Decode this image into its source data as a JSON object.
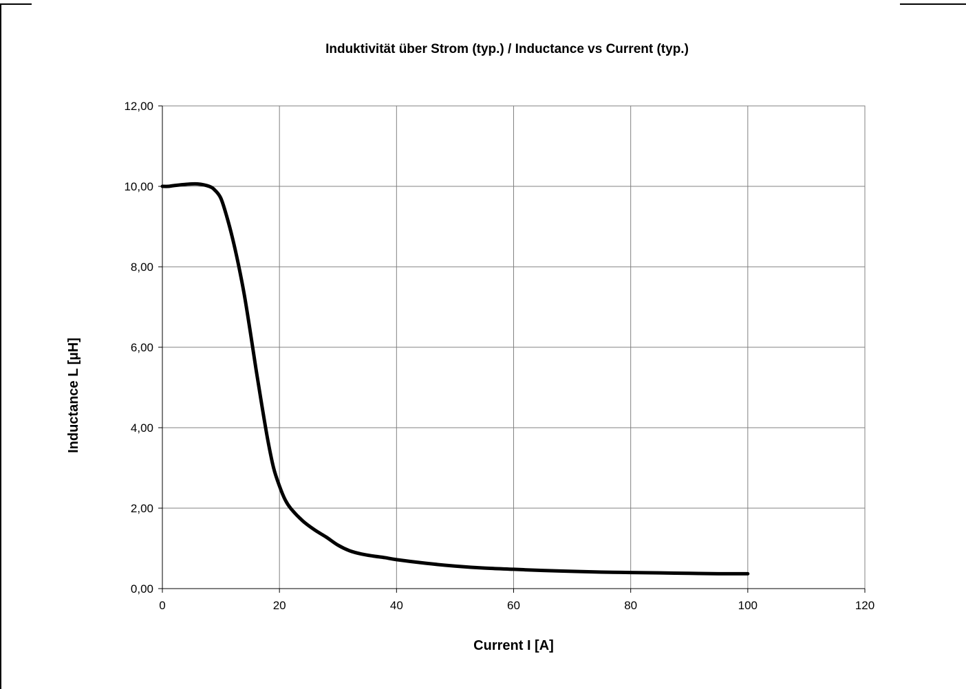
{
  "chart_data": {
    "type": "line",
    "title": "Induktivität über Strom (typ.) / Inductance vs Current (typ.)",
    "xlabel": "Current I [A]",
    "ylabel": "Inductance L [µH]",
    "xlim": [
      0,
      120
    ],
    "ylim": [
      0,
      12
    ],
    "xticks": [
      0,
      20,
      40,
      60,
      80,
      100,
      120
    ],
    "yticks": [
      0,
      2,
      4,
      6,
      8,
      10,
      12
    ],
    "xtick_labels": [
      "0",
      "20",
      "40",
      "60",
      "80",
      "100",
      "120"
    ],
    "ytick_labels": [
      "0,00",
      "2,00",
      "4,00",
      "6,00",
      "8,00",
      "10,00",
      "12,00"
    ],
    "grid": true,
    "legend": "none",
    "series": [
      {
        "color": "#000000",
        "x": [
          0,
          1,
          2,
          4,
          6,
          8,
          9,
          10,
          11,
          12,
          13,
          14,
          15,
          16,
          17,
          18,
          19,
          20,
          21,
          22,
          24,
          26,
          28,
          30,
          32,
          34,
          36,
          38,
          40,
          45,
          50,
          55,
          60,
          65,
          70,
          75,
          80,
          85,
          90,
          95,
          100
        ],
        "y": [
          10.0,
          10.0,
          10.02,
          10.05,
          10.06,
          10.0,
          9.9,
          9.7,
          9.25,
          8.7,
          8.05,
          7.3,
          6.4,
          5.45,
          4.55,
          3.7,
          3.0,
          2.55,
          2.2,
          1.98,
          1.68,
          1.46,
          1.28,
          1.08,
          0.94,
          0.86,
          0.81,
          0.77,
          0.72,
          0.63,
          0.56,
          0.51,
          0.48,
          0.45,
          0.43,
          0.41,
          0.4,
          0.39,
          0.38,
          0.37,
          0.37
        ]
      }
    ]
  }
}
